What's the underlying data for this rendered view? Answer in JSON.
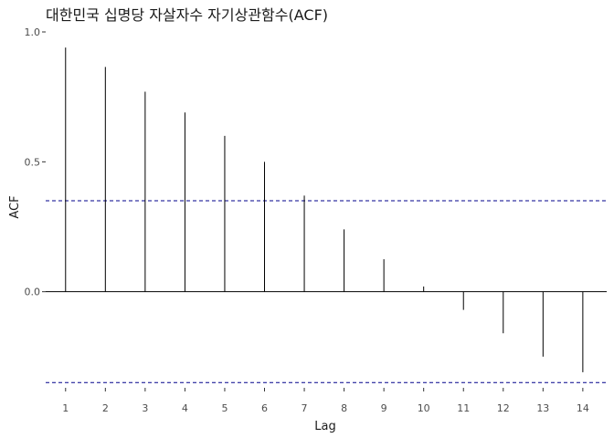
{
  "chart_data": {
    "type": "bar",
    "title": "대한민국 십명당 자살자수 자기상관함수(ACF)",
    "xlabel": "Lag",
    "ylabel": "ACF",
    "x": [
      1,
      2,
      3,
      4,
      5,
      6,
      7,
      8,
      9,
      10,
      11,
      12,
      13,
      14
    ],
    "values": [
      0.94,
      0.865,
      0.77,
      0.69,
      0.6,
      0.5,
      0.37,
      0.24,
      0.125,
      0.02,
      -0.07,
      -0.16,
      -0.25,
      -0.31
    ],
    "x_ticks": [
      "1",
      "2",
      "3",
      "4",
      "5",
      "6",
      "7",
      "8",
      "9",
      "10",
      "11",
      "12",
      "13",
      "14"
    ],
    "y_ticks": [
      "0.0",
      "0.5",
      "1.0"
    ],
    "y_tick_values": [
      0.0,
      0.5,
      1.0
    ],
    "xlim": [
      0.5,
      14.6
    ],
    "ylim": [
      -0.37,
      1.0
    ],
    "confidence_bounds": [
      0.35,
      -0.35
    ],
    "grid": false,
    "colors": {
      "bars": "#000000",
      "bounds": "#00008b"
    }
  }
}
